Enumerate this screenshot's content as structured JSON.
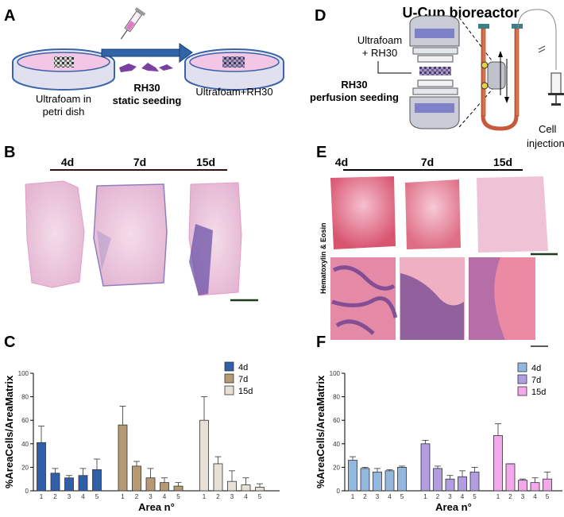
{
  "panels": {
    "A": {
      "letter": "A",
      "left_dish_label": [
        "Ultrafoam in",
        "petri dish"
      ],
      "arrow_label": [
        "RH30",
        "static seeding"
      ],
      "right_dish_label": "Ultrafoam+RH30"
    },
    "D": {
      "letter": "D",
      "title": "U-Cup bioreactor",
      "foam_label": [
        "Ultrafoam",
        "+ RH30"
      ],
      "seeding_label": [
        "RH30",
        "perfusion seeding"
      ],
      "injection_label": [
        "Cell",
        "injection"
      ]
    },
    "B": {
      "letter": "B",
      "timepoints": [
        "4d",
        "7d",
        "15d"
      ]
    },
    "E": {
      "letter": "E",
      "timepoints": [
        "4d",
        "7d",
        "15d"
      ],
      "stain_label": "Hematoxylin & Eosin"
    },
    "C": {
      "letter": "C"
    },
    "F": {
      "letter": "F"
    }
  },
  "colors": {
    "tissue_pink": "#e8a9c9",
    "tissue_purple": "#8070b8",
    "he_red": "#d4526e",
    "he_purple": "#6a3f8f",
    "arrow_blue": "#2f64a8",
    "dish_blue": "#3a63a8",
    "dish_pink": "#f3c6e6"
  },
  "chart_data": [
    {
      "panel": "C",
      "type": "bar",
      "xlabel": "Area n°",
      "ylabel": "%AreaCells/AreaMatrix",
      "ylim": [
        0,
        100
      ],
      "yticks": [
        0,
        20,
        40,
        60,
        80,
        100
      ],
      "categories": [
        "1",
        "2",
        "3",
        "4",
        "5"
      ],
      "legend_placement": "top-right",
      "series": [
        {
          "name": "4d",
          "color": "#2e5fa8",
          "values": [
            41,
            15,
            11,
            13,
            18
          ],
          "errors": [
            14,
            4,
            2,
            6,
            9
          ]
        },
        {
          "name": "7d",
          "color": "#b59a73",
          "values": [
            56,
            21,
            11,
            7,
            4
          ],
          "errors": [
            16,
            4,
            8,
            4,
            3
          ]
        },
        {
          "name": "15d",
          "color": "#e6e0d6",
          "values": [
            60,
            23,
            8,
            5,
            3
          ],
          "errors": [
            20,
            6,
            9,
            6,
            3
          ]
        }
      ]
    },
    {
      "panel": "F",
      "type": "bar",
      "xlabel": "Area n°",
      "ylabel": "%AreaCells/AreaMatrix",
      "ylim": [
        0,
        100
      ],
      "yticks": [
        0,
        20,
        40,
        60,
        80,
        100
      ],
      "categories": [
        "1",
        "2",
        "3",
        "4",
        "5"
      ],
      "legend_placement": "top-right",
      "series": [
        {
          "name": "4d",
          "color": "#92b8df",
          "values": [
            26,
            19,
            16,
            17,
            20
          ],
          "errors": [
            3,
            1,
            3,
            1,
            1
          ]
        },
        {
          "name": "7d",
          "color": "#b09ee0",
          "values": [
            40,
            19,
            10,
            12,
            16
          ],
          "errors": [
            3,
            2,
            3,
            5,
            4
          ]
        },
        {
          "name": "15d",
          "color": "#f4a8ec",
          "values": [
            47,
            23,
            9,
            7,
            10
          ],
          "errors": [
            10,
            0,
            1,
            4,
            6
          ]
        }
      ]
    }
  ]
}
